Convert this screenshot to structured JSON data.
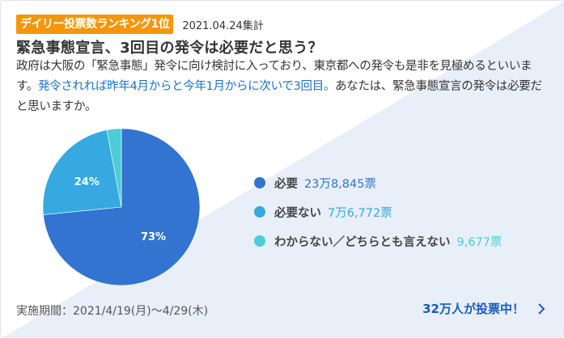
{
  "badge": {
    "label": "デイリー投票数ランキング1位",
    "color": "#f5960a"
  },
  "tally_date": "2021.04.24集計",
  "question": {
    "title": "緊急事態宣言、3回目の発令は必要だと思う？",
    "desc_pre": "政府は大阪の「緊急事態」発令に向け検討に入っており、東京都への発令も是非を見極めるといいます。",
    "desc_highlight": "発令されれば昨年4月からと今年1月からに次いで3回目。",
    "desc_post": "あなたは、緊急事態宣言の発令は必要だと思いますか。"
  },
  "chart_data": {
    "type": "pie",
    "title": "",
    "categories": [
      "必要",
      "必要ない",
      "わからない／どちらとも言えない"
    ],
    "values": [
      238845,
      76772,
      9677
    ],
    "percent_labels": [
      "73%",
      "24%",
      ""
    ],
    "colors": [
      "#3274d0",
      "#35a9e0",
      "#4ccdd8"
    ],
    "start_angle": "12 o'clock, clockwise",
    "legend_position": "right"
  },
  "legend": [
    {
      "label": "必要",
      "count": "23万8,845票",
      "color": "#3274d0",
      "pct_label": "73%"
    },
    {
      "label": "必要ない",
      "count": "7万6,772票",
      "color": "#35a9e0",
      "pct_label": "24%"
    },
    {
      "label": "わからない／どちらとも言えない",
      "count": "9,677票",
      "color": "#4ccdd8",
      "pct_label": ""
    }
  ],
  "footer": {
    "period": "実施期間：2021/4/19(月)〜4/29(木)",
    "voters_link": "32万人が投票中！"
  }
}
